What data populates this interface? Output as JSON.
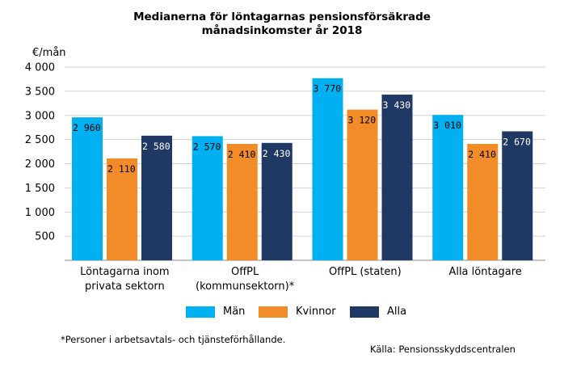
{
  "title_line1": "Medianerna för löntagarnas pensionsförsäkrade",
  "title_line2": "månadsinkomster år 2018",
  "unit_label": "€/mån",
  "footnote": "*Personer i arbetsavtals- och tjänsteförhållande.",
  "source": "Källa: Pensionsskyddscentralen",
  "colors": {
    "man": "#00b0f0",
    "kvinnor": "#f28c28",
    "alla": "#1f3864"
  },
  "chart_data": {
    "type": "bar",
    "title": "Medianerna för löntagarnas pensionsförsäkrade månadsinkomster år 2018",
    "ylabel": "€/mån",
    "xlabel": "",
    "ylim": [
      0,
      4000
    ],
    "yticks": [
      500,
      1000,
      1500,
      2000,
      2500,
      3000,
      3500,
      4000
    ],
    "ytick_labels": [
      "500",
      "1 000",
      "1 500",
      "2 000",
      "2 500",
      "3 000",
      "3 500",
      "4 000"
    ],
    "categories": [
      [
        "Löntagarna inom",
        "privata sektorn"
      ],
      [
        "OffPL",
        "(kommunsektorn)*"
      ],
      [
        "OffPL (staten)"
      ],
      [
        "Alla löntagare"
      ]
    ],
    "series": [
      {
        "name": "Män",
        "values": [
          2960,
          2570,
          3770,
          3010
        ],
        "labels": [
          "2 960",
          "2 570",
          "3 770",
          "3 010"
        ]
      },
      {
        "name": "Kvinnor",
        "values": [
          2110,
          2410,
          3120,
          2410
        ],
        "labels": [
          "2 110",
          "2 410",
          "3 120",
          "2 410"
        ]
      },
      {
        "name": "Alla",
        "values": [
          2580,
          2430,
          3430,
          2670
        ],
        "labels": [
          "2 580",
          "2 430",
          "3 430",
          "2 670"
        ]
      }
    ],
    "grid": true,
    "legend": "bottom"
  }
}
